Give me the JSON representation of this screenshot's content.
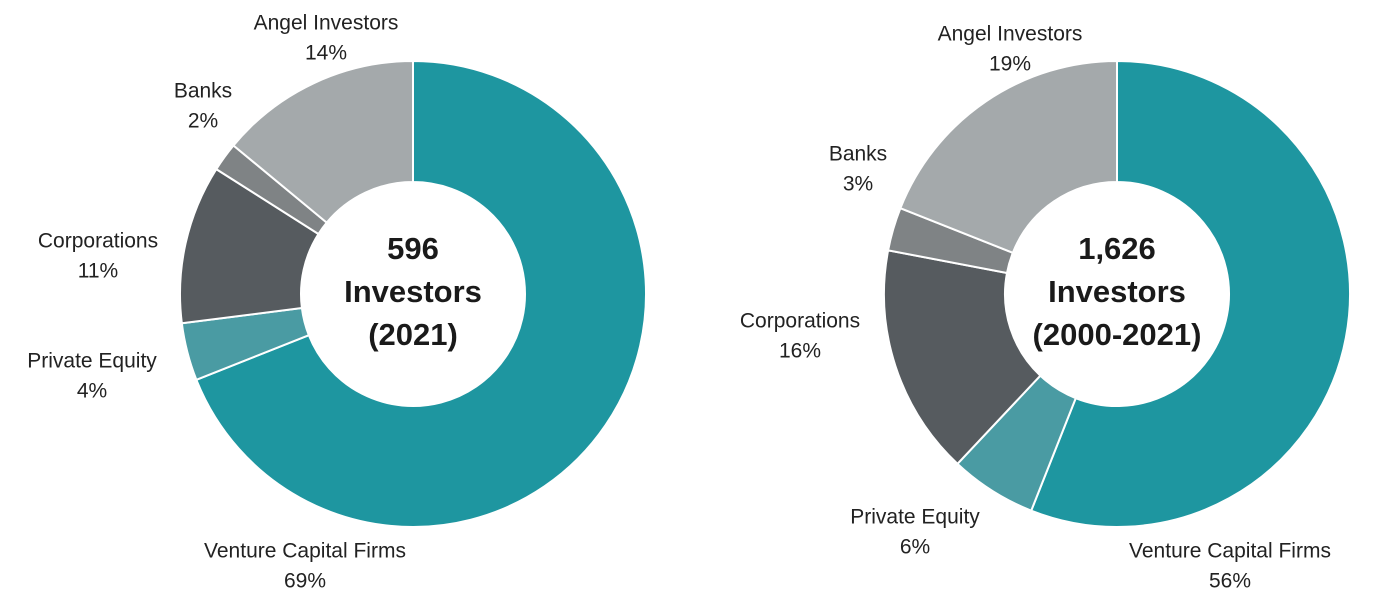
{
  "chart_data": [
    {
      "type": "pie",
      "donut": true,
      "center_text": [
        "596",
        "Investors",
        "(2021)"
      ],
      "categories": [
        "Venture Capital Firms",
        "Private Equity",
        "Corporations",
        "Banks",
        "Angel Investors"
      ],
      "values": [
        69,
        4,
        11,
        2,
        14
      ],
      "value_labels": [
        "69%",
        "4%",
        "11%",
        "2%",
        "14%"
      ],
      "colors": [
        "#1e96a0",
        "#4a9ba3",
        "#565b5f",
        "#7f8385",
        "#a4a9ab"
      ]
    },
    {
      "type": "pie",
      "donut": true,
      "center_text": [
        "1,626",
        "Investors",
        "(2000-2021)"
      ],
      "categories": [
        "Venture Capital Firms",
        "Private Equity",
        "Corporations",
        "Banks",
        "Angel Investors"
      ],
      "values": [
        56,
        6,
        16,
        3,
        19
      ],
      "value_labels": [
        "56%",
        "6%",
        "16%",
        "3%",
        "19%"
      ],
      "colors": [
        "#1e96a0",
        "#4a9ba3",
        "#565b5f",
        "#7f8385",
        "#a4a9ab"
      ]
    }
  ]
}
